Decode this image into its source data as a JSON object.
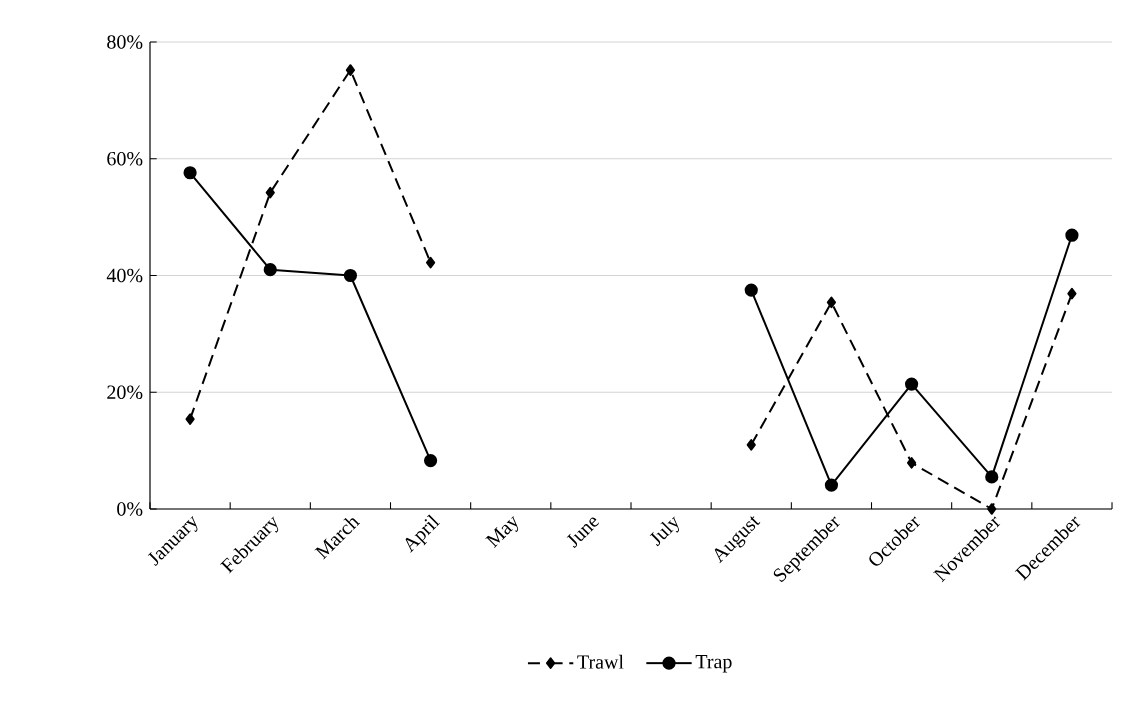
{
  "chart_data": {
    "type": "line",
    "categories": [
      "January",
      "February",
      "March",
      "April",
      "May",
      "June",
      "July",
      "August",
      "September",
      "October",
      "November",
      "December"
    ],
    "series": [
      {
        "name": "Trawl",
        "color": "#000000",
        "marker": "diamond",
        "line_style": "dashed",
        "values": [
          15.4,
          54.2,
          75.2,
          42.2,
          null,
          null,
          null,
          11.0,
          35.4,
          7.9,
          0,
          36.9
        ]
      },
      {
        "name": "Trap",
        "color": "#000000",
        "marker": "circle",
        "line_style": "solid",
        "values": [
          57.6,
          41.0,
          40.0,
          8.3,
          null,
          null,
          null,
          37.5,
          4.1,
          21.4,
          5.5,
          46.9
        ]
      }
    ],
    "ylim": [
      0,
      80
    ],
    "yticks": [
      {
        "value": 0,
        "label": "0%"
      },
      {
        "value": 20,
        "label": "20%"
      },
      {
        "value": 40,
        "label": "40%"
      },
      {
        "value": 60,
        "label": "60%"
      },
      {
        "value": 80,
        "label": "80%"
      }
    ],
    "grid": "y",
    "legend": "bottom"
  }
}
